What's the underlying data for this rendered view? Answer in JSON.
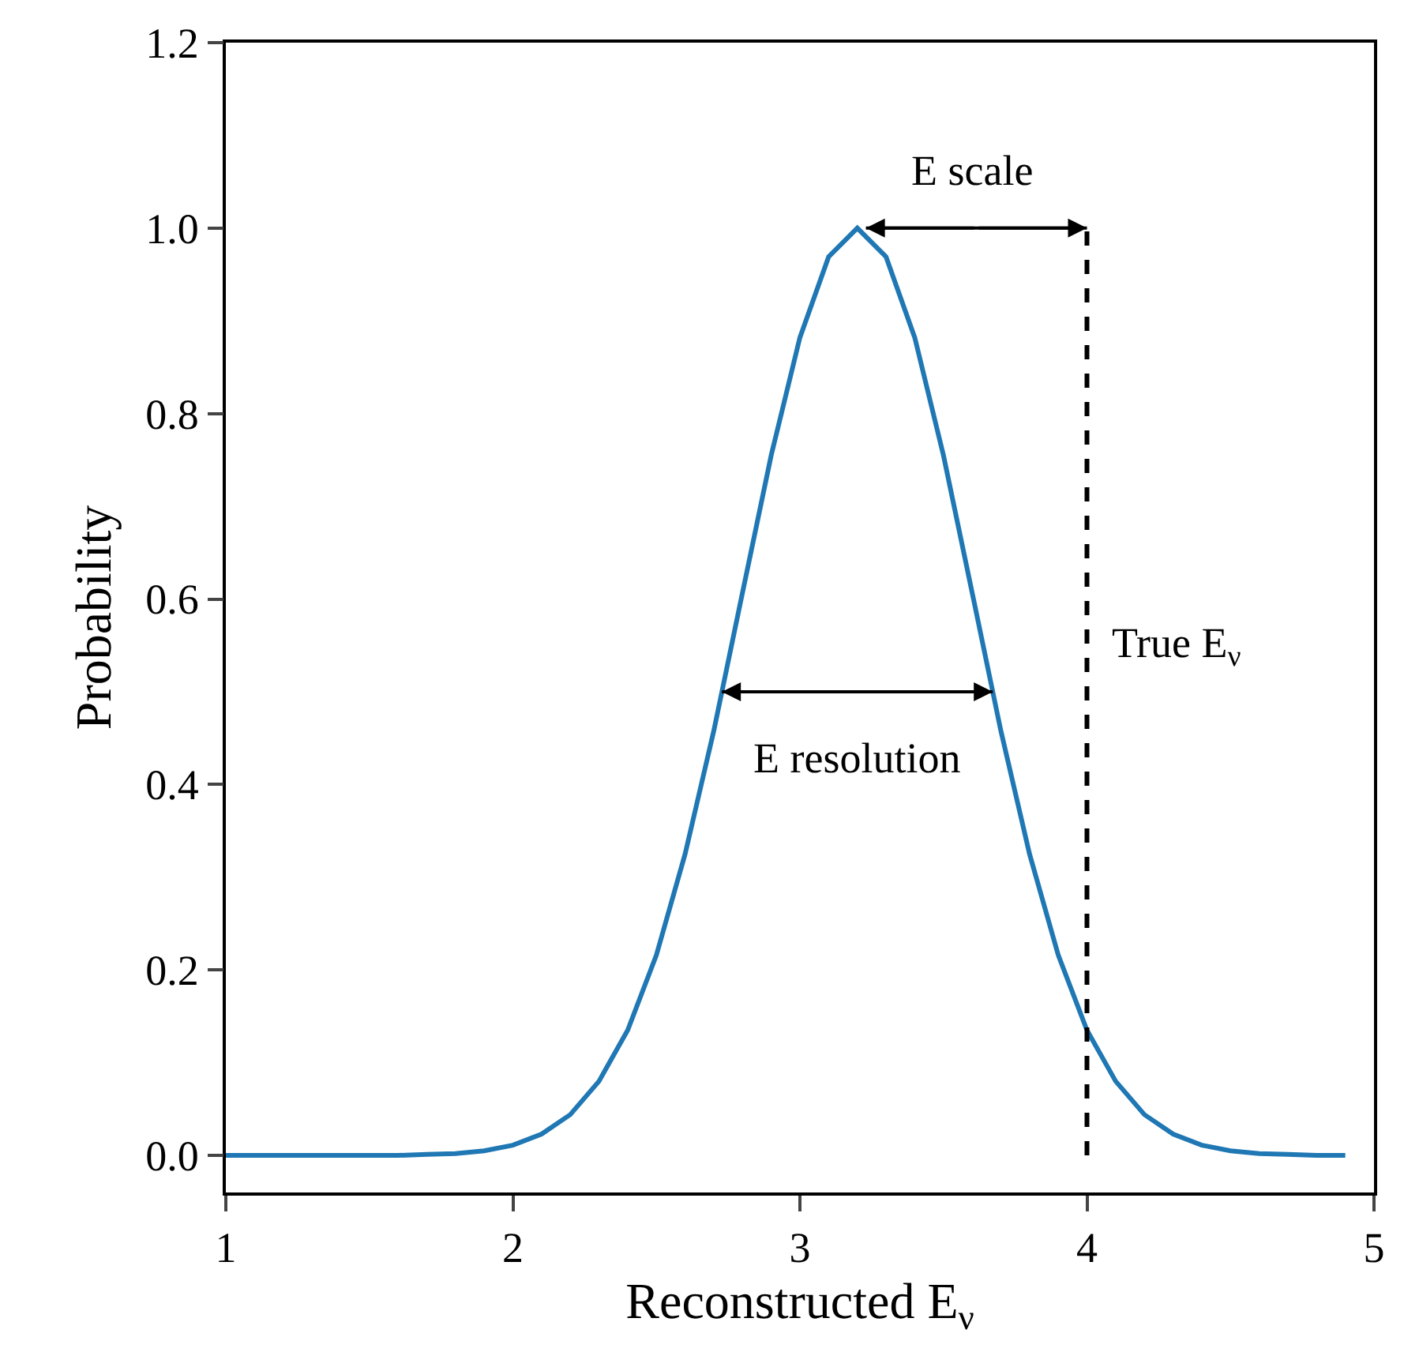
{
  "chart_data": {
    "type": "line",
    "xlabel": "Reconstructed E$_{ν}$",
    "ylabel": "Probability",
    "x": [
      1.0,
      1.1,
      1.2,
      1.3,
      1.4,
      1.5,
      1.6,
      1.7,
      1.8,
      1.9,
      2.0,
      2.1,
      2.2,
      2.3,
      2.4,
      2.5,
      2.6,
      2.7,
      2.8,
      2.9,
      3.0,
      3.1,
      3.2,
      3.3,
      3.4,
      3.5,
      3.6,
      3.7,
      3.8,
      3.9,
      4.0,
      4.1,
      4.2,
      4.3,
      4.4,
      4.5,
      4.6,
      4.7,
      4.8,
      4.9
    ],
    "series": [
      {
        "color": "#1f77b4",
        "values": [
          0,
          0,
          0,
          0,
          0,
          0,
          0,
          0.001,
          0.002,
          0.005,
          0.011,
          0.023,
          0.044,
          0.08,
          0.135,
          0.216,
          0.325,
          0.458,
          0.607,
          0.755,
          0.882,
          0.969,
          1.0,
          0.969,
          0.882,
          0.755,
          0.607,
          0.458,
          0.325,
          0.216,
          0.135,
          0.08,
          0.044,
          0.023,
          0.011,
          0.005,
          0.002,
          0.001,
          0,
          0
        ]
      }
    ],
    "xlim": [
      1,
      5
    ],
    "xticks": [
      1,
      2,
      3,
      4,
      5
    ],
    "ylim": [
      -0.04,
      1.2
    ],
    "yticks": [
      {
        "value": 0,
        "label": "0.0"
      },
      {
        "value": 0.2,
        "label": "0.2"
      },
      {
        "value": 0.4,
        "label": "0.4"
      },
      {
        "value": 0.6,
        "label": "0.6"
      },
      {
        "value": 0.8,
        "label": "0.8"
      },
      {
        "value": 1.0,
        "label": "1.0"
      },
      {
        "value": 1.2,
        "label": "1.2"
      }
    ],
    "ref_lines": [
      {
        "axis": "x",
        "value": 4,
        "label": "True E$_{ν}$",
        "color": "#000000",
        "line_style": "dashed"
      }
    ],
    "annotations": [
      "E scale",
      "E resolution"
    ],
    "marker": "none",
    "line_style": "solid"
  }
}
